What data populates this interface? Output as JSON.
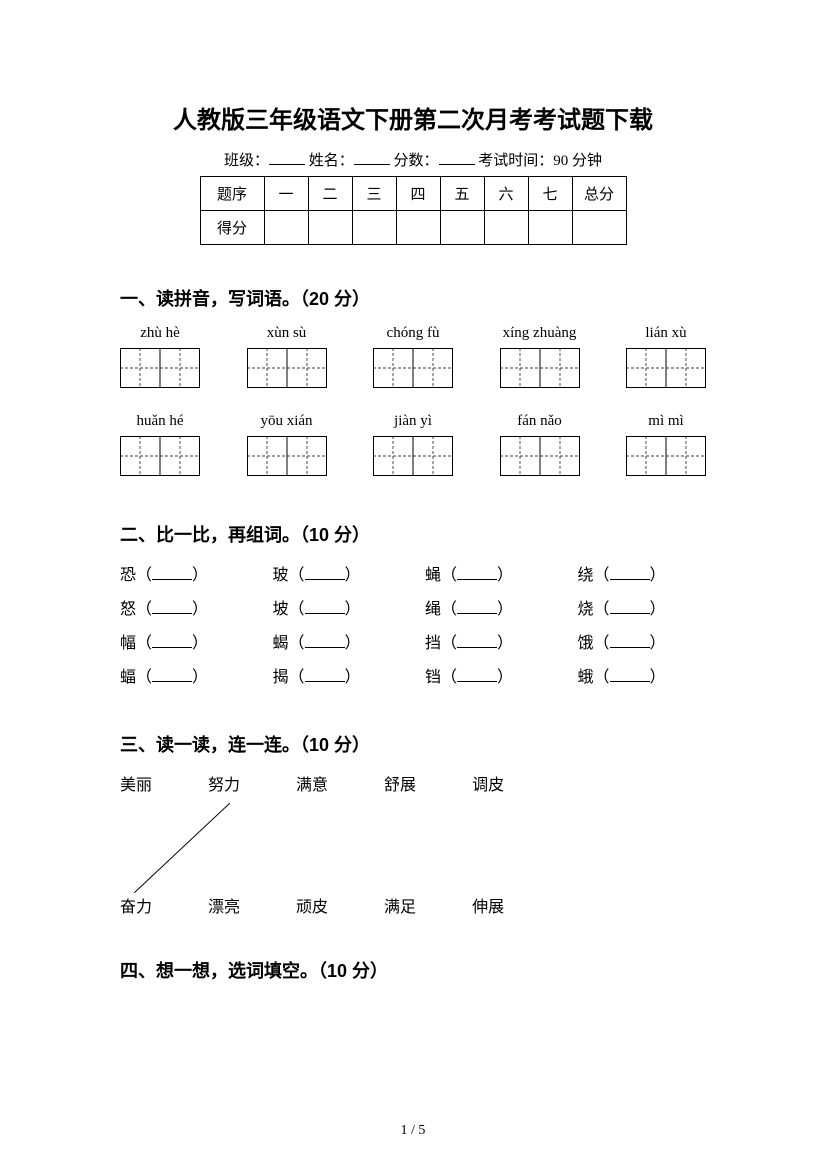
{
  "title": "人教版三年级语文下册第二次月考考试题下载",
  "info": {
    "class_label": "班级：",
    "name_label": "姓名：",
    "score_label": "分数：",
    "time_label": "考试时间：90 分钟"
  },
  "score_table": {
    "row1_label": "题序",
    "cols": [
      "一",
      "二",
      "三",
      "四",
      "五",
      "六",
      "七"
    ],
    "total": "总分",
    "row2_label": "得分"
  },
  "section1": {
    "heading": "一、读拼音，写词语。（20 分）",
    "row1": [
      "zhù hè",
      "xùn sù",
      "chóng fù",
      "xíng zhuàng",
      "lián xù"
    ],
    "row2": [
      "huǎn hé",
      "yōu xián",
      "jiàn yì",
      "fán nǎo",
      "mì mì"
    ]
  },
  "section2": {
    "heading": "二、比一比，再组词。（10 分）",
    "rows": [
      [
        "恐",
        "玻",
        "蝇",
        "绕"
      ],
      [
        "怒",
        "坡",
        "绳",
        "烧"
      ],
      [
        "幅",
        "蝎",
        "挡",
        "饿"
      ],
      [
        "蝠",
        "揭",
        "铛",
        "蛾"
      ]
    ]
  },
  "section3": {
    "heading": "三、读一读，连一连。（10 分）",
    "top": [
      "美丽",
      "努力",
      "满意",
      "舒展",
      "调皮"
    ],
    "bottom": [
      "奋力",
      "漂亮",
      "顽皮",
      "满足",
      "伸展"
    ]
  },
  "section4": {
    "heading": "四、想一想，选词填空。（10 分）"
  },
  "page_num": "1 / 5",
  "charbox": {
    "cell": 40,
    "stroke": "#000000",
    "dash": "3,2"
  }
}
